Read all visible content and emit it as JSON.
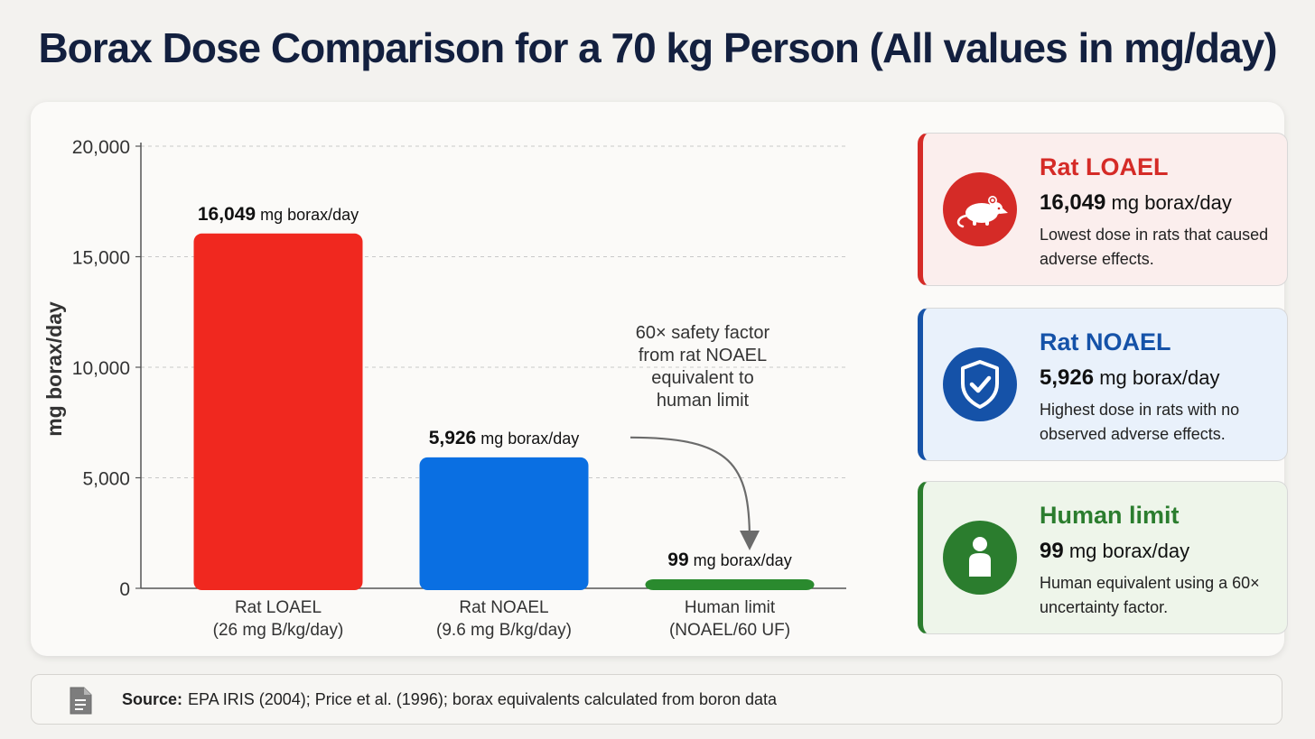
{
  "title": "Borax Dose Comparison for a 70 kg Person (All values in mg/day)",
  "chart_data": {
    "type": "bar",
    "title": "Borax Dose Comparison for a 70 kg Person (All values in mg/day)",
    "ylabel": "mg borax/day",
    "ylim": [
      0,
      20000
    ],
    "yticks": [
      0,
      5000,
      10000,
      15000,
      20000
    ],
    "ytick_labels": [
      "0",
      "5,000",
      "10,000",
      "15,000",
      "20,000"
    ],
    "grid": true,
    "categories": [
      {
        "line1": "Rat LOAEL",
        "line2": "(26 mg B/kg/day)"
      },
      {
        "line1": "Rat NOAEL",
        "line2": "(9.6 mg B/kg/day)"
      },
      {
        "line1": "Human limit",
        "line2": "(NOAEL/60 UF)"
      }
    ],
    "values": [
      16049,
      5926,
      99
    ],
    "value_labels": [
      {
        "number": "16,049",
        "unit": "mg borax/day"
      },
      {
        "number": "5,926",
        "unit": "mg borax/day"
      },
      {
        "number": "99",
        "unit": "mg borax/day"
      }
    ],
    "colors": [
      "#f0281f",
      "#0a6fe2",
      "#2a8a2e"
    ],
    "annotation": {
      "lines": [
        "60× safety factor",
        "from rat NOAEL",
        "equivalent to",
        "human limit"
      ]
    }
  },
  "cards": [
    {
      "title": "Rat LOAEL",
      "value_number": "16,049",
      "value_unit": "mg borax/day",
      "description": "Lowest dose in rats that caused adverse effects.",
      "icon": "rat-icon",
      "accent": "#d52b27",
      "background": "#fbeeed"
    },
    {
      "title": "Rat NOAEL",
      "value_number": "5,926",
      "value_unit": "mg borax/day",
      "description": "Highest dose in rats with no observed adverse effects.",
      "icon": "shield-check-icon",
      "accent": "#1552a8",
      "background": "#e9f1fb"
    },
    {
      "title": "Human limit",
      "value_number": "99",
      "value_unit": "mg borax/day",
      "description": "Human equivalent using a 60× uncertainty factor.",
      "icon": "person-icon",
      "accent": "#2b7d2e",
      "background": "#eef5ea"
    }
  ],
  "source": {
    "label": "Source:",
    "text": "EPA IRIS (2004); Price et al. (1996); borax equivalents calculated from boron data",
    "icon": "document-icon"
  }
}
